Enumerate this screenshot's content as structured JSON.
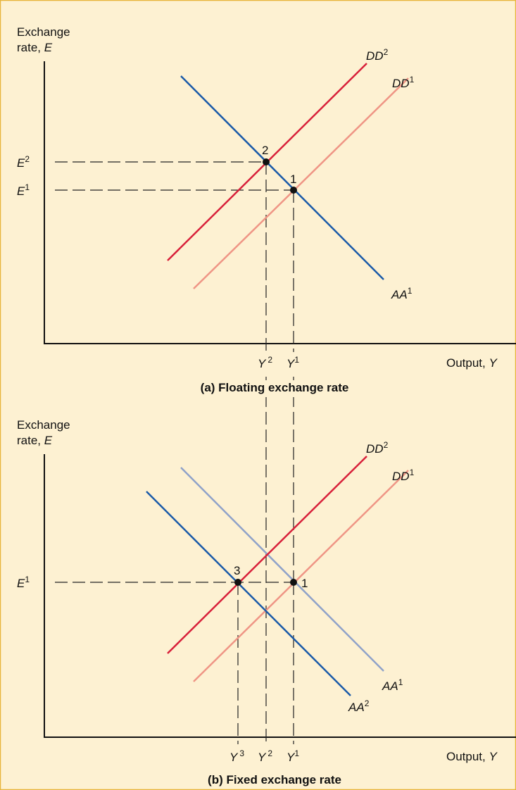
{
  "colors": {
    "background": "#fdf1d2",
    "frame": "#e7b53c",
    "axes": "#111111",
    "dd_new": "#d8203a",
    "dd_old": "#ef9585",
    "aa_current": "#1a5aa8",
    "aa_old": "#8fa2c9",
    "guides": "#222222"
  },
  "panel_a": {
    "y_axis_line1": "Exchange",
    "y_axis_line2_prefix": "rate, ",
    "y_axis_line2_var": "E",
    "x_axis_prefix": "Output, ",
    "x_axis_var": "Y",
    "caption": "(a) Floating exchange rate",
    "curves": {
      "dd2": {
        "base": "DD",
        "sup": "2"
      },
      "dd1": {
        "base": "DD",
        "sup": "1"
      },
      "aa1": {
        "base": "AA",
        "sup": "1"
      }
    },
    "points": {
      "p1": "1",
      "p2": "2"
    },
    "y_ticks": {
      "e2": {
        "base": "E",
        "sup": "2"
      },
      "e1": {
        "base": "E",
        "sup": "1"
      }
    },
    "x_ticks": {
      "y2": {
        "base": "Y",
        "sup": "2"
      },
      "y1": {
        "base": "Y",
        "sup": "1"
      }
    }
  },
  "panel_b": {
    "y_axis_line1": "Exchange",
    "y_axis_line2_prefix": "rate, ",
    "y_axis_line2_var": "E",
    "x_axis_prefix": "Output, ",
    "x_axis_var": "Y",
    "caption": "(b) Fixed exchange rate",
    "curves": {
      "dd2": {
        "base": "DD",
        "sup": "2"
      },
      "dd1": {
        "base": "DD",
        "sup": "1"
      },
      "aa1": {
        "base": "AA",
        "sup": "1"
      },
      "aa2": {
        "base": "AA",
        "sup": "2"
      }
    },
    "points": {
      "p1": "1",
      "p3": "3"
    },
    "y_ticks": {
      "e1": {
        "base": "E",
        "sup": "1"
      }
    },
    "x_ticks": {
      "y3": {
        "base": "Y",
        "sup": "3"
      },
      "y2": {
        "base": "Y",
        "sup": "2"
      },
      "y1": {
        "base": "Y",
        "sup": "1"
      }
    }
  }
}
